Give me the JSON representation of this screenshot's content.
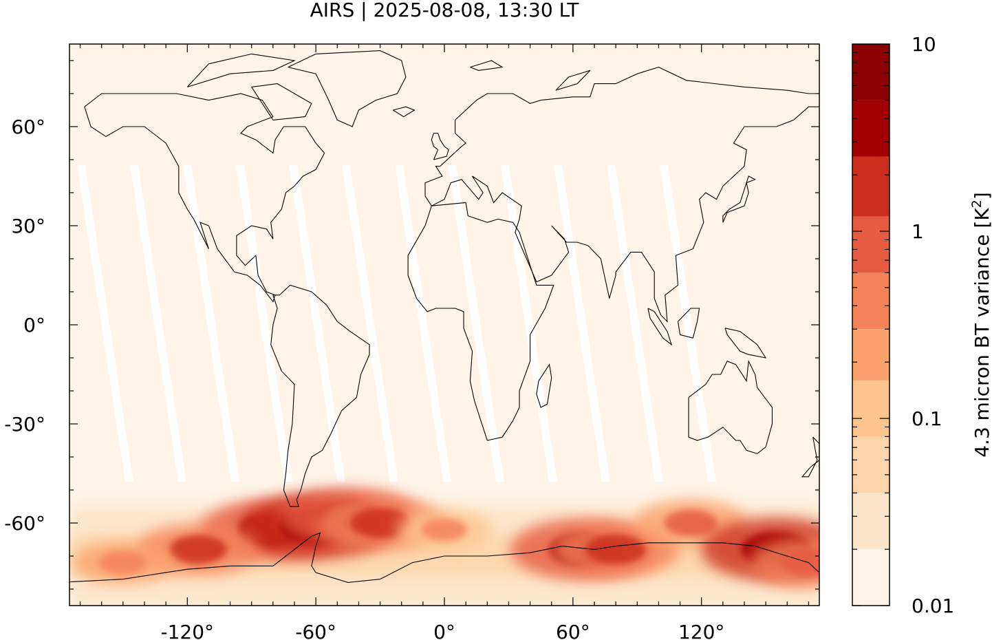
{
  "chart_data": {
    "type": "heatmap",
    "title": "AIRS | 2025-08-08, 13:30 LT",
    "xlabel": "",
    "ylabel": "",
    "x_ticks": [
      -120,
      -60,
      0,
      60,
      120
    ],
    "x_tick_labels": [
      "-120°",
      "-60°",
      "0°",
      "60°",
      "120°"
    ],
    "y_ticks": [
      60,
      30,
      0,
      -30,
      -60
    ],
    "y_tick_labels": [
      "60°",
      "30°",
      "0°",
      "-30°",
      "-60°"
    ],
    "xlim": [
      -175,
      175
    ],
    "ylim": [
      -85,
      85
    ],
    "grid": false,
    "colorbar": {
      "label": "4.3 micron BT variance [K",
      "label_superscript": "2",
      "label_end": "]",
      "scale": "log",
      "range": [
        0.01,
        10
      ],
      "tick_values": [
        10,
        1,
        0.1,
        0.01
      ],
      "tick_labels": [
        "10",
        "1",
        "0.1",
        "0.01"
      ],
      "levels": [
        0.01,
        0.02,
        0.04,
        0.08,
        0.16,
        0.3,
        0.6,
        1.2,
        2.5,
        5,
        10
      ],
      "colors": [
        "#fef4e7",
        "#fde5c9",
        "#fdd5a9",
        "#fdc48d",
        "#fba26c",
        "#f4835a",
        "#e65c42",
        "#cc2e1e",
        "#a20000",
        "#8b0000"
      ]
    },
    "hotspots": [
      {
        "lon": -80,
        "lat": -62,
        "value": 3.0
      },
      {
        "lon": -60,
        "lat": -61,
        "value": 4.0
      },
      {
        "lon": -45,
        "lat": -58,
        "value": 2.0
      },
      {
        "lon": -30,
        "lat": -60,
        "value": 1.5
      },
      {
        "lon": -115,
        "lat": -68,
        "value": 1.2
      },
      {
        "lon": 65,
        "lat": -68,
        "value": 3.0
      },
      {
        "lon": 80,
        "lat": -68,
        "value": 1.5
      },
      {
        "lon": 115,
        "lat": -60,
        "value": 0.8
      },
      {
        "lon": 155,
        "lat": -68,
        "value": 3.5
      },
      {
        "lon": -150,
        "lat": -72,
        "value": 0.5
      },
      {
        "lon": 0,
        "lat": -62,
        "value": 0.4
      },
      {
        "lon": 170,
        "lat": -72,
        "value": 1.0
      }
    ]
  }
}
